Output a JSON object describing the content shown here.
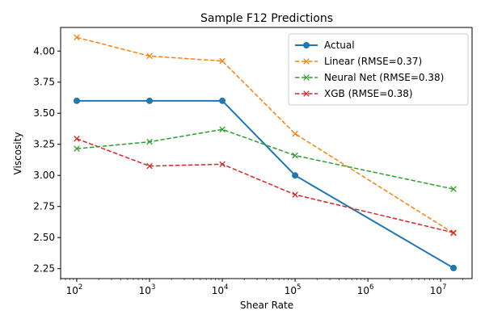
{
  "chart_data": {
    "type": "line",
    "title": "Sample F12 Predictions",
    "xlabel": "Shear Rate",
    "ylabel": "Viscosity",
    "xscale": "log",
    "xlim": [
      60,
      27000000
    ],
    "ylim": [
      2.17,
      4.19
    ],
    "x": [
      100,
      1000,
      10000,
      100000,
      15000000
    ],
    "x_ticks": [
      {
        "value": 100,
        "mantissa": "10",
        "exp": "2"
      },
      {
        "value": 1000,
        "mantissa": "10",
        "exp": "3"
      },
      {
        "value": 10000,
        "mantissa": "10",
        "exp": "4"
      },
      {
        "value": 100000,
        "mantissa": "10",
        "exp": "5"
      },
      {
        "value": 1000000,
        "mantissa": "10",
        "exp": "6"
      },
      {
        "value": 10000000,
        "mantissa": "10",
        "exp": "7"
      }
    ],
    "y_ticks": [
      "2.25",
      "2.50",
      "2.75",
      "3.00",
      "3.25",
      "3.50",
      "3.75",
      "4.00"
    ],
    "legend_position": "top-right",
    "series": [
      {
        "name": "Actual",
        "color": "#1f77b4",
        "style": "solid",
        "marker": "circle",
        "values": [
          3.6,
          3.6,
          3.6,
          3.0,
          2.255
        ]
      },
      {
        "name": "Linear (RMSE=0.37)",
        "color": "#ff7f0e",
        "style": "dashed",
        "marker": "x",
        "values": [
          4.11,
          3.96,
          3.92,
          3.335,
          2.535
        ]
      },
      {
        "name": "Neural Net (RMSE=0.38)",
        "color": "#2ca02c",
        "style": "dashed",
        "marker": "x",
        "values": [
          3.215,
          3.27,
          3.37,
          3.16,
          2.89
        ]
      },
      {
        "name": "XGB (RMSE=0.38)",
        "color": "#d62728",
        "style": "dashed",
        "marker": "x",
        "values": [
          3.295,
          3.075,
          3.09,
          2.845,
          2.54
        ]
      }
    ]
  }
}
